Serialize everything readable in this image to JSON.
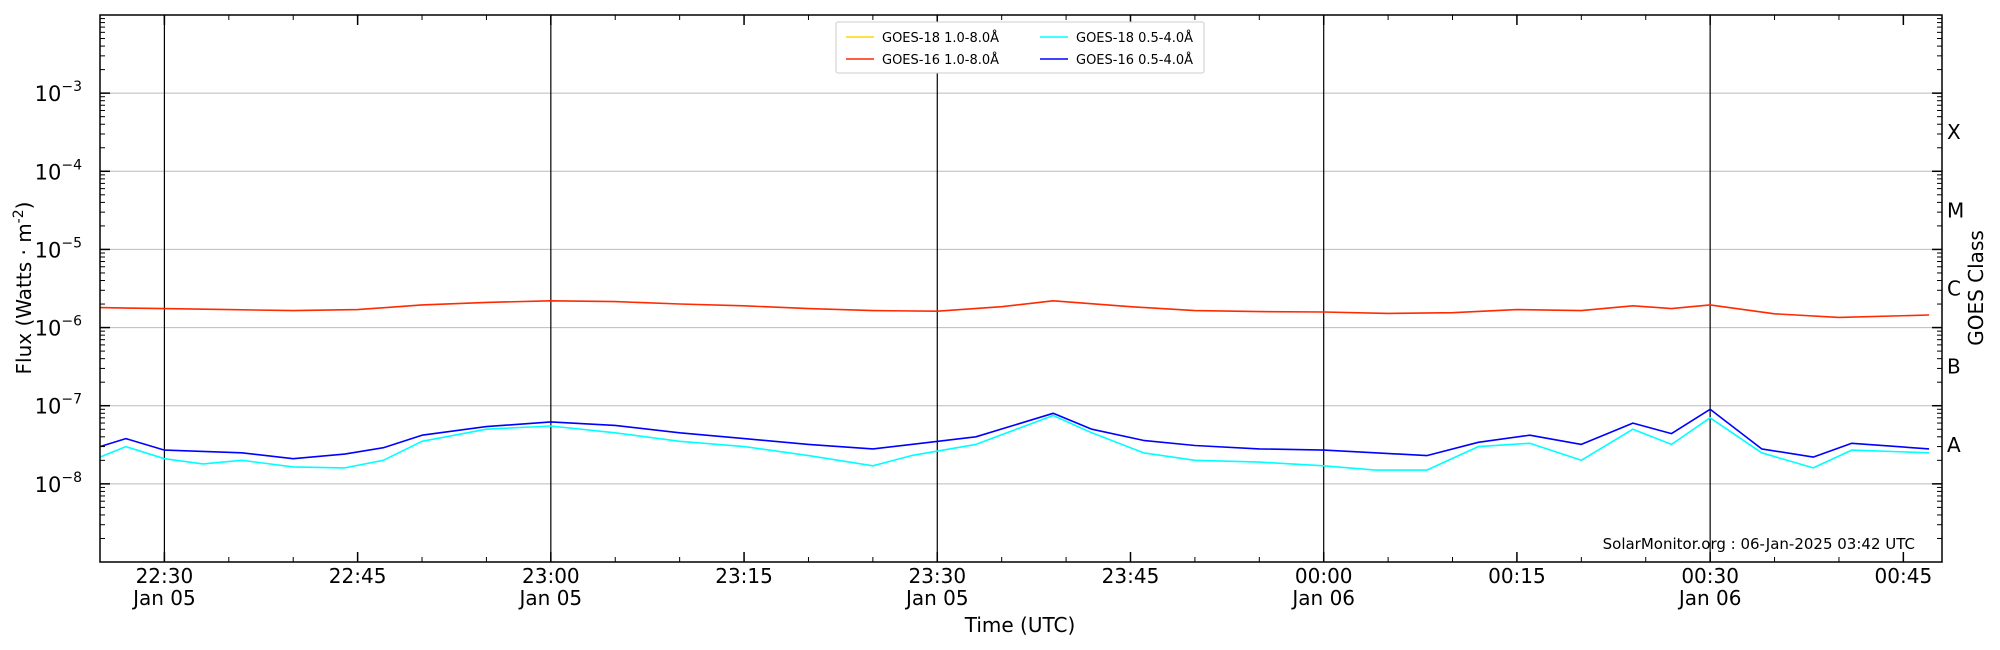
{
  "chart_data": {
    "type": "line",
    "title": "",
    "xlabel": "Time (UTC)",
    "ylabel": "Flux (Watts · m",
    "ylabel_sup": "-2",
    "ylabel_close": ")",
    "y2label": "GOES Class",
    "yscale": "log",
    "ylim": [
      1e-09,
      0.01
    ],
    "x_range": [
      "2025-01-05 22:25",
      "2025-01-06 00:48"
    ],
    "grid": "horizontal",
    "legend_position": "top-center",
    "y_ticks": [
      {
        "value": 1e-08,
        "base": "10",
        "exp": "−8"
      },
      {
        "value": 1e-07,
        "base": "10",
        "exp": "−7"
      },
      {
        "value": 1e-06,
        "base": "10",
        "exp": "−6"
      },
      {
        "value": 1e-05,
        "base": "10",
        "exp": "−5"
      },
      {
        "value": 0.0001,
        "base": "10",
        "exp": "−4"
      },
      {
        "value": 0.001,
        "base": "10",
        "exp": "−3"
      }
    ],
    "x_ticks": [
      {
        "time": "2025-01-05 22:30",
        "label": "22:30",
        "sublabel": "Jan 05",
        "major": true
      },
      {
        "time": "2025-01-05 22:45",
        "label": "22:45",
        "sublabel": "",
        "major": false
      },
      {
        "time": "2025-01-05 23:00",
        "label": "23:00",
        "sublabel": "Jan 05",
        "major": true
      },
      {
        "time": "2025-01-05 23:15",
        "label": "23:15",
        "sublabel": "",
        "major": false
      },
      {
        "time": "2025-01-05 23:30",
        "label": "23:30",
        "sublabel": "Jan 05",
        "major": true
      },
      {
        "time": "2025-01-05 23:45",
        "label": "23:45",
        "sublabel": "",
        "major": false
      },
      {
        "time": "2025-01-06 00:00",
        "label": "00:00",
        "sublabel": "Jan 06",
        "major": true
      },
      {
        "time": "2025-01-06 00:15",
        "label": "00:15",
        "sublabel": "",
        "major": false
      },
      {
        "time": "2025-01-06 00:30",
        "label": "00:30",
        "sublabel": "Jan 06",
        "major": true
      },
      {
        "time": "2025-01-06 00:45",
        "label": "00:45",
        "sublabel": "",
        "major": false
      }
    ],
    "goes_classes": [
      {
        "label": "A",
        "value": 1e-08
      },
      {
        "label": "B",
        "value": 1e-07
      },
      {
        "label": "C",
        "value": 1e-06
      },
      {
        "label": "M",
        "value": 1e-05
      },
      {
        "label": "X",
        "value": 0.0001
      }
    ],
    "series": [
      {
        "name": "GOES-18 1.0-8.0Å",
        "color": "#ffd700",
        "points": []
      },
      {
        "name": "GOES-16 1.0-8.0Å",
        "color": "#ff2a00",
        "points": [
          [
            "2025-01-05 22:25",
            1.8e-06
          ],
          [
            "2025-01-05 22:30",
            1.75e-06
          ],
          [
            "2025-01-05 22:35",
            1.7e-06
          ],
          [
            "2025-01-05 22:40",
            1.65e-06
          ],
          [
            "2025-01-05 22:45",
            1.7e-06
          ],
          [
            "2025-01-05 22:50",
            1.95e-06
          ],
          [
            "2025-01-05 22:55",
            2.1e-06
          ],
          [
            "2025-01-05 23:00",
            2.2e-06
          ],
          [
            "2025-01-05 23:05",
            2.15e-06
          ],
          [
            "2025-01-05 23:10",
            2e-06
          ],
          [
            "2025-01-05 23:15",
            1.9e-06
          ],
          [
            "2025-01-05 23:20",
            1.75e-06
          ],
          [
            "2025-01-05 23:25",
            1.65e-06
          ],
          [
            "2025-01-05 23:30",
            1.62e-06
          ],
          [
            "2025-01-05 23:35",
            1.85e-06
          ],
          [
            "2025-01-05 23:39",
            2.2e-06
          ],
          [
            "2025-01-05 23:45",
            1.85e-06
          ],
          [
            "2025-01-05 23:50",
            1.65e-06
          ],
          [
            "2025-01-05 23:55",
            1.6e-06
          ],
          [
            "2025-01-06 00:00",
            1.58e-06
          ],
          [
            "2025-01-06 00:05",
            1.52e-06
          ],
          [
            "2025-01-06 00:10",
            1.55e-06
          ],
          [
            "2025-01-06 00:15",
            1.7e-06
          ],
          [
            "2025-01-06 00:20",
            1.65e-06
          ],
          [
            "2025-01-06 00:24",
            1.9e-06
          ],
          [
            "2025-01-06 00:27",
            1.75e-06
          ],
          [
            "2025-01-06 00:30",
            1.95e-06
          ],
          [
            "2025-01-06 00:35",
            1.5e-06
          ],
          [
            "2025-01-06 00:40",
            1.35e-06
          ],
          [
            "2025-01-06 00:47",
            1.45e-06
          ]
        ]
      },
      {
        "name": "GOES-18 0.5-4.0Å",
        "color": "#00ffff",
        "points": [
          [
            "2025-01-05 22:25",
            2.2e-08
          ],
          [
            "2025-01-05 22:27",
            3e-08
          ],
          [
            "2025-01-05 22:30",
            2.1e-08
          ],
          [
            "2025-01-05 22:33",
            1.8e-08
          ],
          [
            "2025-01-05 22:36",
            2e-08
          ],
          [
            "2025-01-05 22:40",
            1.65e-08
          ],
          [
            "2025-01-05 22:44",
            1.6e-08
          ],
          [
            "2025-01-05 22:47",
            2e-08
          ],
          [
            "2025-01-05 22:50",
            3.5e-08
          ],
          [
            "2025-01-05 22:55",
            5e-08
          ],
          [
            "2025-01-05 23:00",
            5.5e-08
          ],
          [
            "2025-01-05 23:05",
            4.5e-08
          ],
          [
            "2025-01-05 23:10",
            3.5e-08
          ],
          [
            "2025-01-05 23:15",
            3e-08
          ],
          [
            "2025-01-05 23:20",
            2.3e-08
          ],
          [
            "2025-01-05 23:25",
            1.7e-08
          ],
          [
            "2025-01-05 23:28",
            2.3e-08
          ],
          [
            "2025-01-05 23:33",
            3.2e-08
          ],
          [
            "2025-01-05 23:39",
            7.5e-08
          ],
          [
            "2025-01-05 23:42",
            4.5e-08
          ],
          [
            "2025-01-05 23:46",
            2.5e-08
          ],
          [
            "2025-01-05 23:50",
            2e-08
          ],
          [
            "2025-01-05 23:55",
            1.9e-08
          ],
          [
            "2025-01-06 00:00",
            1.7e-08
          ],
          [
            "2025-01-06 00:04",
            1.5e-08
          ],
          [
            "2025-01-06 00:08",
            1.5e-08
          ],
          [
            "2025-01-06 00:12",
            3e-08
          ],
          [
            "2025-01-06 00:16",
            3.3e-08
          ],
          [
            "2025-01-06 00:20",
            2e-08
          ],
          [
            "2025-01-06 00:24",
            5e-08
          ],
          [
            "2025-01-06 00:27",
            3.2e-08
          ],
          [
            "2025-01-06 00:30",
            7e-08
          ],
          [
            "2025-01-06 00:34",
            2.5e-08
          ],
          [
            "2025-01-06 00:38",
            1.6e-08
          ],
          [
            "2025-01-06 00:41",
            2.7e-08
          ],
          [
            "2025-01-06 00:47",
            2.5e-08
          ]
        ]
      },
      {
        "name": "GOES-16 0.5-4.0Å",
        "color": "#0000ff",
        "points": [
          [
            "2025-01-05 22:25",
            3e-08
          ],
          [
            "2025-01-05 22:27",
            3.8e-08
          ],
          [
            "2025-01-05 22:30",
            2.7e-08
          ],
          [
            "2025-01-05 22:33",
            2.6e-08
          ],
          [
            "2025-01-05 22:36",
            2.5e-08
          ],
          [
            "2025-01-05 22:40",
            2.1e-08
          ],
          [
            "2025-01-05 22:44",
            2.4e-08
          ],
          [
            "2025-01-05 22:47",
            2.9e-08
          ],
          [
            "2025-01-05 22:50",
            4.2e-08
          ],
          [
            "2025-01-05 22:55",
            5.4e-08
          ],
          [
            "2025-01-05 23:00",
            6.2e-08
          ],
          [
            "2025-01-05 23:05",
            5.6e-08
          ],
          [
            "2025-01-05 23:10",
            4.5e-08
          ],
          [
            "2025-01-05 23:15",
            3.8e-08
          ],
          [
            "2025-01-05 23:20",
            3.2e-08
          ],
          [
            "2025-01-05 23:25",
            2.8e-08
          ],
          [
            "2025-01-05 23:28",
            3.2e-08
          ],
          [
            "2025-01-05 23:33",
            4e-08
          ],
          [
            "2025-01-05 23:39",
            8e-08
          ],
          [
            "2025-01-05 23:42",
            5e-08
          ],
          [
            "2025-01-05 23:46",
            3.6e-08
          ],
          [
            "2025-01-05 23:50",
            3.1e-08
          ],
          [
            "2025-01-05 23:55",
            2.8e-08
          ],
          [
            "2025-01-06 00:00",
            2.7e-08
          ],
          [
            "2025-01-06 00:04",
            2.5e-08
          ],
          [
            "2025-01-06 00:08",
            2.3e-08
          ],
          [
            "2025-01-06 00:12",
            3.4e-08
          ],
          [
            "2025-01-06 00:16",
            4.2e-08
          ],
          [
            "2025-01-06 00:20",
            3.2e-08
          ],
          [
            "2025-01-06 00:24",
            6e-08
          ],
          [
            "2025-01-06 00:27",
            4.4e-08
          ],
          [
            "2025-01-06 00:30",
            9e-08
          ],
          [
            "2025-01-06 00:34",
            2.8e-08
          ],
          [
            "2025-01-06 00:38",
            2.2e-08
          ],
          [
            "2025-01-06 00:41",
            3.3e-08
          ],
          [
            "2025-01-06 00:47",
            2.8e-08
          ]
        ]
      }
    ],
    "watermark": "SolarMonitor.org : 06-Jan-2025 03:42 UTC"
  }
}
